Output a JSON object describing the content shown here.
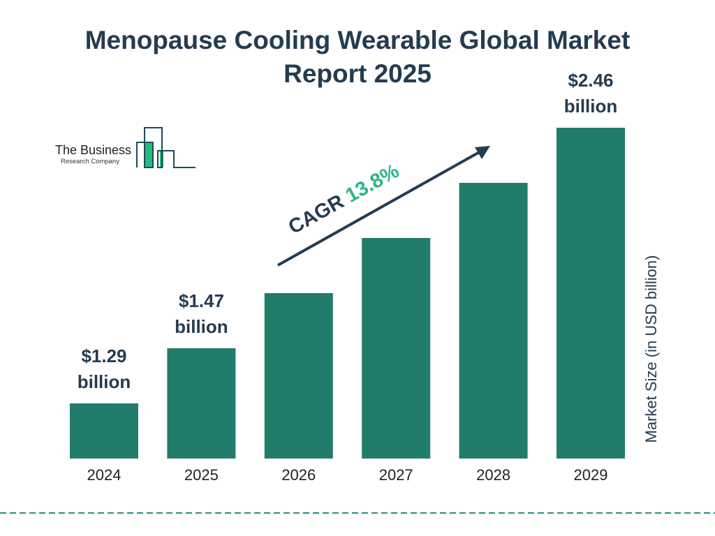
{
  "title": "Menopause Cooling Wearable Global Market Report 2025",
  "logo": {
    "line1": "The Business",
    "line2": "Research Company"
  },
  "chart_data": {
    "type": "bar",
    "categories": [
      "2024",
      "2025",
      "2026",
      "2027",
      "2028",
      "2029"
    ],
    "values": [
      1.29,
      1.47,
      1.67,
      1.9,
      2.16,
      2.46
    ],
    "data_labels": [
      {
        "index": 0,
        "value": "$1.29",
        "unit": "billion"
      },
      {
        "index": 1,
        "value": "$1.47",
        "unit": "billion"
      },
      {
        "index": 5,
        "value": "$2.46",
        "unit": "billion"
      }
    ],
    "ylabel": "Market Size (in USD billion)",
    "xlabel": "",
    "annotation": {
      "label": "CAGR",
      "value": "13.8%"
    },
    "grid": false,
    "colors": {
      "bar": "#217c6c",
      "text": "#253b50",
      "cagr": "#2bb87f",
      "dash": "#2a8a80"
    }
  }
}
